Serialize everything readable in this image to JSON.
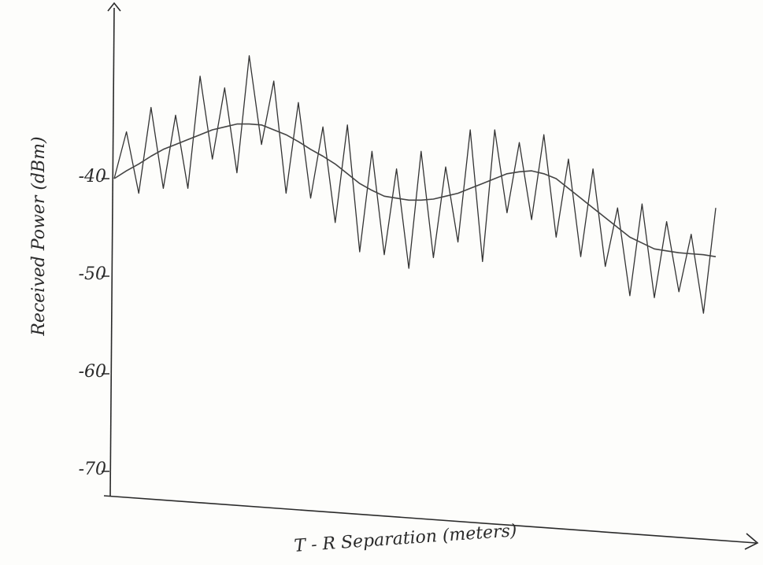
{
  "chart_data": {
    "type": "line",
    "y_label": "Received Power (dBm)",
    "x_label": "T - R Separation (meters)",
    "categories": [
      null,
      null,
      null,
      null,
      null,
      null,
      null,
      null,
      null,
      null,
      null,
      null,
      null,
      null,
      null,
      null,
      null,
      null,
      null,
      null,
      null,
      null,
      null,
      null,
      null,
      null,
      null,
      null,
      null,
      null,
      null,
      null,
      null,
      null,
      null,
      null,
      null,
      null,
      null,
      null,
      null,
      null,
      null,
      null,
      null,
      null,
      null,
      null,
      null,
      null
    ],
    "series": [
      {
        "color": "#333333",
        "values": [
          -40,
          -35.2,
          -41.5,
          -32.7,
          -41,
          -33.5,
          -41,
          -29.5,
          -38,
          -30.7,
          -39.4,
          -27.4,
          -36.5,
          -30,
          -41.5,
          -32.2,
          -42,
          -34.7,
          -44.5,
          -34.5,
          -47.5,
          -37.2,
          -47.8,
          -39,
          -49.2,
          -37.2,
          -48.1,
          -38.8,
          -46.5,
          -35,
          -48.5,
          -35,
          -43.5,
          -36.3,
          -44.2,
          -35.5,
          -46,
          -38,
          -48,
          -39,
          -49,
          -43,
          -52,
          -42.6,
          -52.2,
          -44.4,
          -51.6,
          -45.7,
          -53.8,
          -43
        ]
      },
      {
        "color": "#444444",
        "values": [
          -40,
          -39.2,
          -38.5,
          -37.7,
          -37,
          -36.5,
          -36,
          -35.5,
          -35,
          -34.7,
          -34.4,
          -34.4,
          -34.5,
          -35,
          -35.5,
          -36.2,
          -37,
          -37.7,
          -38.5,
          -39.5,
          -40.5,
          -41.2,
          -41.8,
          -42,
          -42.2,
          -42.2,
          -42.1,
          -41.8,
          -41.5,
          -41,
          -40.5,
          -40,
          -39.5,
          -39.3,
          -39.2,
          -39.5,
          -40,
          -41,
          -42,
          -43,
          -44,
          -45,
          -46,
          -46.6,
          -47.2,
          -47.4,
          -47.6,
          -47.7,
          -47.8,
          -48
        ]
      }
    ],
    "ylim": [
      -72.5,
      -22.5
    ],
    "yticks": [
      -40,
      -50,
      -60,
      -70
    ]
  }
}
